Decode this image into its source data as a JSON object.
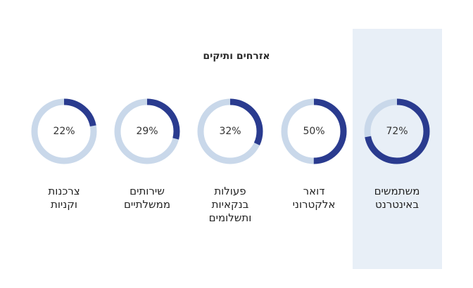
{
  "chart_title": "אזרחים ותיקים",
  "colors": {
    "filled": "#2a3b8f",
    "track": "#c9d8ea",
    "highlight": "#e8eff7"
  },
  "chart_data": {
    "type": "donut",
    "title": "אזרחים ותיקים",
    "highlighted_category": "משתמשים באינטרנט",
    "items": [
      {
        "label_lines": [
          "משתמשים",
          "באינטרנט"
        ],
        "value": 72,
        "display": "72%"
      },
      {
        "label_lines": [
          "דואר",
          "אלקטרוני"
        ],
        "value": 50,
        "display": "50%"
      },
      {
        "label_lines": [
          "פעולות",
          "בנקאיות",
          "ותשלומים"
        ],
        "value": 32,
        "display": "32%"
      },
      {
        "label_lines": [
          "שירותים",
          "ממשלתיים"
        ],
        "value": 29,
        "display": "29%"
      },
      {
        "label_lines": [
          "צרכנות",
          "וקניות"
        ],
        "value": 22,
        "display": "22%"
      }
    ]
  }
}
